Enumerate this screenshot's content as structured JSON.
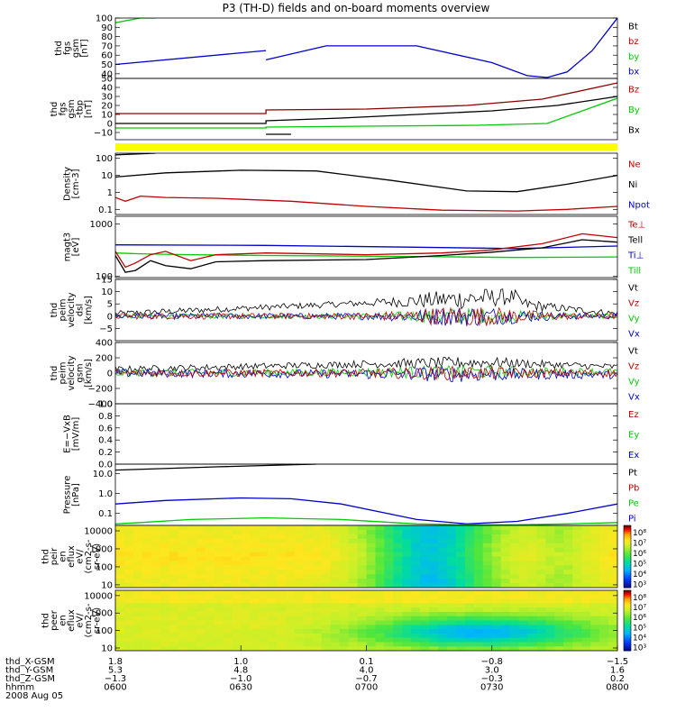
{
  "title": "P3 (TH-D) fields and on-board moments overview",
  "chart_data": [
    {
      "id": "bt",
      "type": "line",
      "ylabel": [
        "thd",
        "fgs",
        "gsm",
        "[nT]"
      ],
      "ylim": [
        35,
        100
      ],
      "yticks": [
        {
          "v": 40,
          "t": "40"
        },
        {
          "v": 50,
          "t": "50"
        },
        {
          "v": 60,
          "t": "60"
        },
        {
          "v": 70,
          "t": "70"
        },
        {
          "v": 80,
          "t": "80"
        },
        {
          "v": 90,
          "t": "90"
        },
        {
          "v": 100,
          "t": "100"
        }
      ],
      "legend": [
        {
          "name": "Bt",
          "color": "#000000"
        },
        {
          "name": "bz",
          "color": "#c00000"
        },
        {
          "name": "by",
          "color": "#00cc00"
        },
        {
          "name": "bx",
          "color": "#0000cc"
        }
      ],
      "series": [
        {
          "name": "bx",
          "color": "#0000cc",
          "x": [
            0,
            0.3,
            0.3,
            0.42,
            0.6,
            0.75,
            0.82,
            0.86,
            0.9,
            0.95,
            1.0
          ],
          "y": [
            50,
            65,
            55,
            70,
            70,
            52,
            38,
            36,
            42,
            65,
            100
          ],
          "gap_after": [
            1
          ]
        },
        {
          "name": "by",
          "color": "#00cc00",
          "x": [
            0,
            0.05,
            0.08
          ],
          "y": [
            95,
            100,
            100
          ]
        }
      ]
    },
    {
      "id": "fgs",
      "type": "line",
      "ylabel": [
        "thd",
        "fgs",
        "gsm",
        "-tbp",
        "[nT]"
      ],
      "ylim": [
        -18,
        50
      ],
      "yticks": [
        {
          "v": -10,
          "t": "−10"
        },
        {
          "v": 0,
          "t": "0"
        },
        {
          "v": 10,
          "t": "10"
        },
        {
          "v": 20,
          "t": "20"
        },
        {
          "v": 30,
          "t": "30"
        },
        {
          "v": 40,
          "t": "40"
        },
        {
          "v": 50,
          "t": "50"
        }
      ],
      "legend": [
        {
          "name": "Bz",
          "color": "#c00000"
        },
        {
          "name": "By",
          "color": "#00cc00"
        },
        {
          "name": "Bx",
          "color": "#000000"
        }
      ],
      "series": [
        {
          "name": "Bz",
          "color": "#8b0000",
          "x": [
            0,
            0.3,
            0.3,
            0.5,
            0.7,
            0.85,
            1.0
          ],
          "y": [
            11,
            11,
            15,
            16,
            20,
            27,
            45
          ]
        },
        {
          "name": "Bx",
          "color": "#000000",
          "x": [
            0,
            0.3,
            0.3,
            0.45,
            0.6,
            0.75,
            0.88,
            1.0
          ],
          "y": [
            0,
            0,
            3,
            6,
            10,
            14,
            20,
            30
          ]
        },
        {
          "name": "By",
          "color": "#00cc00",
          "x": [
            0,
            0.3,
            0.3,
            0.5,
            0.72,
            0.86,
            1.0
          ],
          "y": [
            -5,
            -5,
            -4,
            -3,
            -2,
            0,
            28
          ]
        },
        {
          "name": "gap-black",
          "color": "#000000",
          "x": [
            0.3,
            0.35
          ],
          "y": [
            -12,
            -12
          ]
        }
      ]
    },
    {
      "id": "flag",
      "type": "bar",
      "color": "#ffff00",
      "ylabel": [],
      "x": [
        0,
        1
      ]
    },
    {
      "id": "density",
      "type": "line",
      "log": true,
      "ylabel": [
        "Density",
        "[cm-3]"
      ],
      "ylim": [
        0.05,
        200
      ],
      "yticks": [
        {
          "v": 0.1,
          "t": "0.1"
        },
        {
          "v": 1,
          "t": "1"
        },
        {
          "v": 10,
          "t": "10"
        },
        {
          "v": 100,
          "t": "100"
        }
      ],
      "legend": [
        {
          "name": "Ne",
          "color": "#c00000"
        },
        {
          "name": "Ni",
          "color": "#000000"
        },
        {
          "name": "Npot",
          "color": "#0000cc"
        }
      ],
      "series": [
        {
          "name": "Ni",
          "color": "#000000",
          "x": [
            0,
            0.1,
            0.25,
            0.4,
            0.55,
            0.7,
            0.8,
            0.9,
            1.0
          ],
          "y": [
            8,
            14,
            20,
            18,
            5,
            1.2,
            1.1,
            3,
            10
          ]
        },
        {
          "name": "Ne",
          "color": "#c00000",
          "x": [
            0,
            0.02,
            0.05,
            0.1,
            0.2,
            0.35,
            0.5,
            0.65,
            0.8,
            0.9,
            1.0
          ],
          "y": [
            0.5,
            0.3,
            0.6,
            0.5,
            0.45,
            0.3,
            0.15,
            0.09,
            0.08,
            0.1,
            0.15
          ]
        },
        {
          "name": "top",
          "color": "#000000",
          "x": [
            0,
            0.08
          ],
          "y": [
            160,
            200
          ]
        }
      ]
    },
    {
      "id": "temp",
      "type": "line",
      "log": true,
      "ylabel": [
        "magt3",
        "[eV]"
      ],
      "ylim": [
        95,
        1400
      ],
      "yticks": [
        {
          "v": 100,
          "t": "100"
        },
        {
          "v": 1000,
          "t": "1000"
        }
      ],
      "legend": [
        {
          "name": "Te⊥",
          "color": "#c00000"
        },
        {
          "name": "Tell",
          "color": "#000000"
        },
        {
          "name": "Ti⊥",
          "color": "#0000cc"
        },
        {
          "name": "Till",
          "color": "#00cc00"
        }
      ],
      "series": [
        {
          "name": "Ti⊥",
          "color": "#0000cc",
          "x": [
            0,
            0.3,
            0.6,
            0.8,
            1.0
          ],
          "y": [
            400,
            390,
            360,
            340,
            380
          ]
        },
        {
          "name": "Till",
          "color": "#00cc00",
          "x": [
            0,
            0.05,
            0.15,
            0.3,
            0.6,
            0.8,
            1.0
          ],
          "y": [
            280,
            270,
            260,
            250,
            240,
            230,
            235
          ]
        },
        {
          "name": "Te⊥",
          "color": "#c00000",
          "x": [
            0,
            0.02,
            0.04,
            0.07,
            0.1,
            0.15,
            0.2,
            0.3,
            0.5,
            0.65,
            0.75,
            0.85,
            0.93,
            1.0
          ],
          "y": [
            300,
            150,
            180,
            260,
            300,
            200,
            260,
            280,
            260,
            280,
            320,
            420,
            650,
            550
          ]
        },
        {
          "name": "Tell",
          "color": "#000000",
          "x": [
            0,
            0.02,
            0.04,
            0.07,
            0.1,
            0.15,
            0.2,
            0.3,
            0.5,
            0.65,
            0.75,
            0.85,
            0.93,
            1.0
          ],
          "y": [
            250,
            120,
            130,
            200,
            160,
            140,
            190,
            200,
            210,
            250,
            290,
            350,
            500,
            450
          ]
        }
      ]
    },
    {
      "id": "vel1",
      "type": "line",
      "ylabel": [
        "thd",
        "peim",
        "velocity",
        "dsl",
        "[km/s]"
      ],
      "ylim": [
        -10,
        15
      ],
      "yticks": [
        {
          "v": -5,
          "t": "−5"
        },
        {
          "v": 0,
          "t": "0"
        },
        {
          "v": 5,
          "t": "5"
        },
        {
          "v": 10,
          "t": "10"
        },
        {
          "v": 15,
          "t": "15"
        }
      ],
      "legend": [
        {
          "name": "Vt",
          "color": "#000000"
        },
        {
          "name": "Vz",
          "color": "#c00000"
        },
        {
          "name": "Vy",
          "color": "#00cc00"
        },
        {
          "name": "Vx",
          "color": "#0000cc"
        }
      ],
      "noise": [
        {
          "name": "Vt",
          "color": "#000000",
          "base": [
            0,
            1,
            0.8,
            8,
            0.7,
            8,
            0.85,
            4,
            1.0,
            1
          ],
          "amp": 2.5
        },
        {
          "name": "Vy",
          "color": "#00cc00",
          "base": [
            0,
            0,
            1,
            0
          ],
          "amp": 2.0
        },
        {
          "name": "Vx",
          "color": "#0000cc",
          "base": [
            0,
            0,
            1,
            0
          ],
          "amp": 2.5
        },
        {
          "name": "Vz",
          "color": "#c00000",
          "base": [
            0,
            0,
            1,
            0
          ],
          "amp": 2.5
        }
      ]
    },
    {
      "id": "vel2",
      "type": "line",
      "ylabel": [
        "thd",
        "peim",
        "velocity",
        "gsm",
        "[km/s]"
      ],
      "ylim": [
        -400,
        400
      ],
      "yticks": [
        {
          "v": -400,
          "t": "−400"
        },
        {
          "v": -200,
          "t": "−200"
        },
        {
          "v": 0,
          "t": "0"
        },
        {
          "v": 200,
          "t": "200"
        },
        {
          "v": 400,
          "t": "400"
        }
      ],
      "legend": [
        {
          "name": "Vt",
          "color": "#000000"
        },
        {
          "name": "Vz",
          "color": "#c00000"
        },
        {
          "name": "Vy",
          "color": "#00cc00"
        },
        {
          "name": "Vx",
          "color": "#0000cc"
        }
      ],
      "noise": [
        {
          "name": "Vt",
          "color": "#000000",
          "base": [
            0,
            50,
            0.5,
            120,
            0.75,
            140,
            1.0,
            80
          ],
          "amp": 60
        },
        {
          "name": "Vy",
          "color": "#00cc00",
          "base": [
            0,
            0,
            1,
            20
          ],
          "amp": 70
        },
        {
          "name": "Vx",
          "color": "#0000cc",
          "base": [
            0,
            0,
            1,
            -20
          ],
          "amp": 80
        },
        {
          "name": "Vz",
          "color": "#c00000",
          "base": [
            0,
            0,
            1,
            0
          ],
          "amp": 70
        }
      ]
    },
    {
      "id": "efield",
      "type": "line",
      "ylabel": [
        "E=−VxB",
        "[mV/m]"
      ],
      "ylim": [
        0,
        1
      ],
      "yticks": [
        {
          "v": 0,
          "t": "0.0"
        },
        {
          "v": 0.2,
          "t": "0.2"
        },
        {
          "v": 0.4,
          "t": "0.4"
        },
        {
          "v": 0.6,
          "t": "0.6"
        },
        {
          "v": 0.8,
          "t": "0.8"
        },
        {
          "v": 1.0,
          "t": "1.0"
        }
      ],
      "legend": [
        {
          "name": "Ez",
          "color": "#c00000"
        },
        {
          "name": "Ey",
          "color": "#00cc00"
        },
        {
          "name": "Ex",
          "color": "#0000cc"
        }
      ],
      "series": []
    },
    {
      "id": "pressure",
      "type": "line",
      "log": true,
      "ylabel": [
        "Pressure",
        "[nPa]"
      ],
      "ylim": [
        0.025,
        30
      ],
      "yticks": [
        {
          "v": 0.1,
          "t": "0.1"
        },
        {
          "v": 1,
          "t": "1.0"
        },
        {
          "v": 10,
          "t": "10.0"
        }
      ],
      "legend": [
        {
          "name": "Pt",
          "color": "#000000"
        },
        {
          "name": "Pb",
          "color": "#c00000"
        },
        {
          "name": "Pe",
          "color": "#00cc00"
        },
        {
          "name": "Pi",
          "color": "#0000cc"
        }
      ],
      "series": [
        {
          "name": "Pt",
          "color": "#000000",
          "x": [
            0,
            0.2,
            0.4
          ],
          "y": [
            15,
            22,
            30
          ]
        },
        {
          "name": "Pi",
          "color": "#0000cc",
          "x": [
            0,
            0.1,
            0.25,
            0.35,
            0.45,
            0.6,
            0.7,
            0.8,
            0.9,
            1.0
          ],
          "y": [
            0.3,
            0.45,
            0.6,
            0.55,
            0.3,
            0.05,
            0.03,
            0.04,
            0.1,
            0.3
          ]
        },
        {
          "name": "Pe",
          "color": "#00cc00",
          "x": [
            0,
            0.05,
            0.15,
            0.3,
            0.45,
            0.6,
            0.7,
            0.8,
            0.9,
            1.0
          ],
          "y": [
            0.03,
            0.035,
            0.05,
            0.06,
            0.05,
            0.03,
            0.027,
            0.027,
            0.03,
            0.035
          ]
        }
      ]
    },
    {
      "id": "spec_ion",
      "type": "heatmap",
      "log": true,
      "ylabel": [
        "thd",
        "peir",
        "en",
        "eflux",
        "eV/",
        "(cm2-s-",
        "sr-eV)"
      ],
      "ylim": [
        7,
        20000
      ],
      "yticks": [
        {
          "v": 10,
          "t": "10"
        },
        {
          "v": 100,
          "t": "100"
        },
        {
          "v": 1000,
          "t": "1000"
        },
        {
          "v": 10000,
          "t": "10000"
        }
      ],
      "colorbar": [
        "10³",
        "10⁴",
        "10⁵",
        "10⁶",
        "10⁷",
        "10⁸"
      ]
    },
    {
      "id": "spec_ele",
      "type": "heatmap",
      "log": true,
      "ylabel": [
        "thd",
        "peer",
        "en",
        "eflux",
        "eV/",
        "(cm2-s-",
        "sr-eV)"
      ],
      "ylim": [
        7,
        20000
      ],
      "yticks": [
        {
          "v": 10,
          "t": "10"
        },
        {
          "v": 100,
          "t": "100"
        },
        {
          "v": 1000,
          "t": "1000"
        },
        {
          "v": 10000,
          "t": "10000"
        }
      ],
      "colorbar": [
        "10³",
        "10⁴",
        "10⁵",
        "10⁶",
        "10⁷",
        "10⁸"
      ]
    }
  ],
  "x_axis": {
    "rows": [
      {
        "label": "thd_X-GSM",
        "values": [
          "1.8",
          "1.0",
          "0.1",
          "−0.8",
          "−1.5"
        ]
      },
      {
        "label": "thd_Y-GSM",
        "values": [
          "5.3",
          "4.8",
          "4.0",
          "3.0",
          "1.6"
        ]
      },
      {
        "label": "thd_Z-GSM",
        "values": [
          "−1.3",
          "−1.0",
          "−0.7",
          "−0.3",
          "0.2"
        ]
      },
      {
        "label": "hhmm",
        "values": [
          "0600",
          "0630",
          "0700",
          "0730",
          "0800"
        ]
      }
    ],
    "date": "2008 Aug 05"
  }
}
